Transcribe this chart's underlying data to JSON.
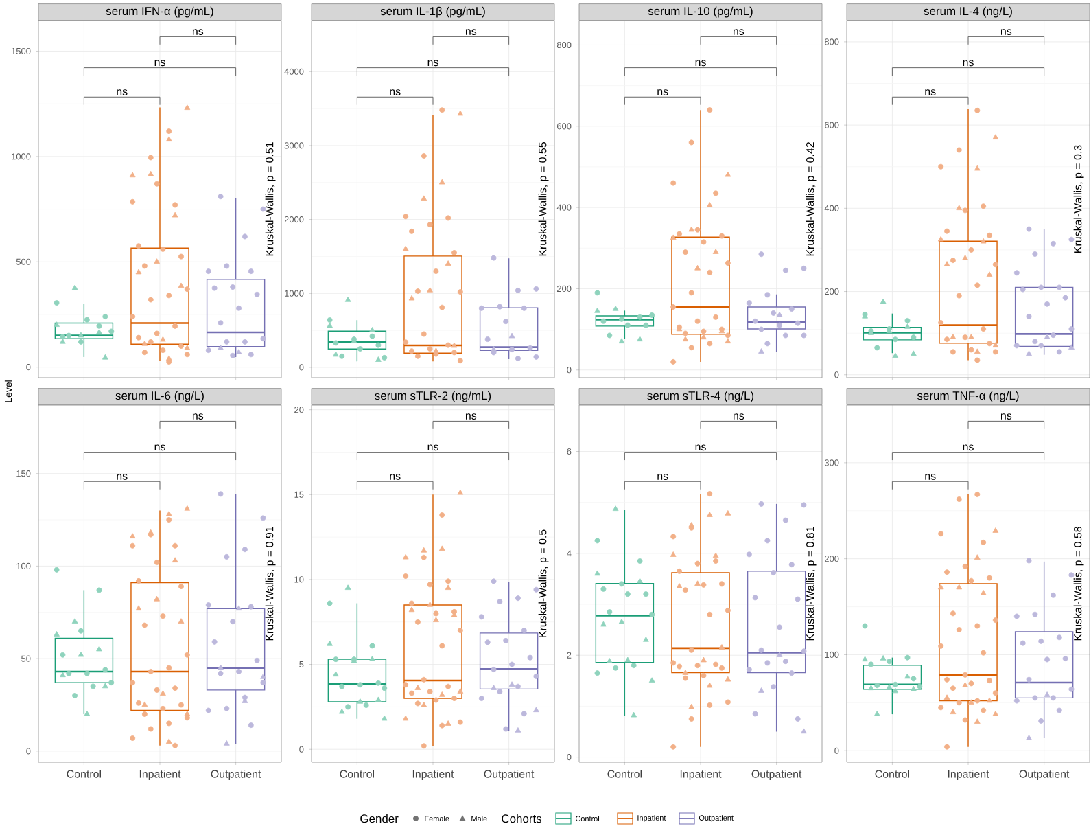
{
  "chart_data": [
    {
      "type": "box",
      "title": "serum IFN-α (pg/mL)",
      "ylabel": "Level",
      "categories": [
        "Control",
        "Inpatient",
        "Outpatient"
      ],
      "colors": [
        "#1b9e77",
        "#d95f02",
        "#7570b3"
      ],
      "ylim": [
        -50,
        1645
      ],
      "yticks": [
        0,
        500,
        1000,
        1500
      ],
      "grid": true,
      "tick_labels": "y",
      "boxes": [
        {
          "low": 48,
          "q1": 135,
          "median": 150,
          "q3": 209,
          "high": 302
        },
        {
          "low": 30,
          "q1": 109,
          "median": 209,
          "q3": 565,
          "high": 1233
        },
        {
          "low": 48,
          "q1": 98,
          "median": 165,
          "q3": 417,
          "high": 804
        }
      ],
      "series": [
        {
          "type": "scatter",
          "marker": "circle",
          "color": "#8fd3bd",
          "x": [
            "Control",
            "Control",
            "Control",
            "Control",
            "Control",
            "Control",
            "Control",
            "Control"
          ],
          "values": [
            305,
            195,
            120,
            145,
            240,
            225,
            150,
            170
          ]
        },
        {
          "type": "scatter",
          "marker": "triangle",
          "color": "#8fd3bd",
          "x": [
            "Control",
            "Control",
            "Control",
            "Control",
            "Control",
            "Control"
          ],
          "values": [
            375,
            200,
            165,
            150,
            120,
            45
          ]
        },
        {
          "type": "scatter",
          "marker": "circle",
          "color": "#f2b088",
          "x": [
            "Inpatient",
            "Inpatient",
            "Inpatient",
            "Inpatient",
            "Inpatient",
            "Inpatient",
            "Inpatient",
            "Inpatient",
            "Inpatient",
            "Inpatient",
            "Inpatient",
            "Inpatient",
            "Inpatient",
            "Inpatient",
            "Inpatient",
            "Inpatient",
            "Inpatient",
            "Inpatient",
            "Inpatient",
            "Inpatient",
            "Inpatient",
            "Inpatient"
          ],
          "values": [
            1120,
            995,
            785,
            770,
            870,
            575,
            525,
            560,
            480,
            370,
            340,
            320,
            240,
            195,
            160,
            140,
            100,
            80,
            70,
            60,
            25,
            120
          ]
        },
        {
          "type": "scatter",
          "marker": "triangle",
          "color": "#f2b088",
          "x": [
            "Inpatient",
            "Inpatient",
            "Inpatient",
            "Inpatient",
            "Inpatient",
            "Inpatient",
            "Inpatient",
            "Inpatient",
            "Inpatient",
            "Inpatient",
            "Inpatient",
            "Inpatient"
          ],
          "values": [
            1230,
            1080,
            915,
            910,
            720,
            500,
            450,
            385,
            130,
            110,
            90,
            40
          ]
        },
        {
          "type": "scatter",
          "marker": "circle",
          "color": "#bcb8dc",
          "x": [
            "Outpatient",
            "Outpatient",
            "Outpatient",
            "Outpatient",
            "Outpatient",
            "Outpatient",
            "Outpatient",
            "Outpatient",
            "Outpatient",
            "Outpatient",
            "Outpatient",
            "Outpatient",
            "Outpatient",
            "Outpatient",
            "Outpatient",
            "Outpatient",
            "Outpatient"
          ],
          "values": [
            810,
            750,
            620,
            480,
            455,
            455,
            380,
            375,
            345,
            280,
            210,
            135,
            120,
            120,
            80,
            60,
            55
          ]
        },
        {
          "type": "scatter",
          "marker": "triangle",
          "color": "#bcb8dc",
          "x": [
            "Outpatient",
            "Outpatient"
          ],
          "values": [
            70,
            90
          ]
        }
      ],
      "annotations": [
        "ns",
        "ns",
        "ns",
        "Kruskal-Wallis, p = 0.51"
      ]
    },
    {
      "type": "box",
      "title": "serum IL-1β (pg/mL)",
      "categories": [
        "Control",
        "Inpatient",
        "Outpatient"
      ],
      "colors": [
        "#1b9e77",
        "#d95f02",
        "#7570b3"
      ],
      "ylim": [
        -140,
        4690
      ],
      "yticks": [
        0,
        1000,
        2000,
        3000,
        4000
      ],
      "grid": true,
      "tick_labels": "y",
      "boxes": [
        {
          "low": 80,
          "q1": 248,
          "median": 340,
          "q3": 489,
          "high": 638
        },
        {
          "low": 80,
          "q1": 192,
          "median": 297,
          "q3": 1505,
          "high": 3412
        },
        {
          "low": 111,
          "q1": 229,
          "median": 272,
          "q3": 805,
          "high": 1474
        }
      ],
      "series": [
        {
          "type": "scatter",
          "marker": "circle",
          "color": "#8fd3bd",
          "x": [
            "Control",
            "Control",
            "Control",
            "Control",
            "Control",
            "Control",
            "Control",
            "Control"
          ],
          "values": [
            640,
            420,
            380,
            330,
            300,
            250,
            150,
            130
          ]
        },
        {
          "type": "scatter",
          "marker": "triangle",
          "color": "#8fd3bd",
          "x": [
            "Control",
            "Control",
            "Control",
            "Control",
            "Control",
            "Control"
          ],
          "values": [
            910,
            560,
            500,
            350,
            170,
            100
          ]
        },
        {
          "type": "scatter",
          "marker": "circle",
          "color": "#f2b088",
          "x": [
            "Inpatient",
            "Inpatient",
            "Inpatient",
            "Inpatient",
            "Inpatient",
            "Inpatient",
            "Inpatient",
            "Inpatient",
            "Inpatient",
            "Inpatient",
            "Inpatient",
            "Inpatient",
            "Inpatient",
            "Inpatient",
            "Inpatient",
            "Inpatient",
            "Inpatient",
            "Inpatient",
            "Inpatient",
            "Inpatient"
          ],
          "values": [
            3480,
            2860,
            2040,
            2020,
            1930,
            1840,
            1550,
            1300,
            1030,
            1020,
            810,
            450,
            340,
            300,
            250,
            220,
            200,
            180,
            150,
            90
          ]
        },
        {
          "type": "scatter",
          "marker": "triangle",
          "color": "#f2b088",
          "x": [
            "Inpatient",
            "Inpatient",
            "Inpatient",
            "Inpatient",
            "Inpatient",
            "Inpatient",
            "Inpatient",
            "Inpatient",
            "Inpatient"
          ],
          "values": [
            3430,
            2500,
            2280,
            1600,
            1400,
            1040,
            930,
            290,
            220
          ]
        },
        {
          "type": "scatter",
          "marker": "circle",
          "color": "#bcb8dc",
          "x": [
            "Outpatient",
            "Outpatient",
            "Outpatient",
            "Outpatient",
            "Outpatient",
            "Outpatient",
            "Outpatient",
            "Outpatient",
            "Outpatient",
            "Outpatient",
            "Outpatient",
            "Outpatient",
            "Outpatient"
          ],
          "values": [
            1480,
            1060,
            1040,
            820,
            800,
            800,
            620,
            380,
            260,
            240,
            200,
            140,
            120
          ]
        },
        {
          "type": "scatter",
          "marker": "triangle",
          "color": "#bcb8dc",
          "x": [
            "Outpatient",
            "Outpatient"
          ],
          "values": [
            420,
            240
          ]
        }
      ],
      "annotations": [
        "ns",
        "ns",
        "ns",
        "Kruskal-Wallis, p = 0.55"
      ]
    },
    {
      "type": "box",
      "title": "serum IL-10 (pg/mL)",
      "categories": [
        "Control",
        "Inpatient",
        "Outpatient"
      ],
      "colors": [
        "#1b9e77",
        "#d95f02",
        "#7570b3"
      ],
      "ylim": [
        -19,
        860
      ],
      "yticks": [
        0,
        200,
        400,
        600,
        800
      ],
      "grid": true,
      "tick_labels": "y",
      "boxes": [
        {
          "low": 77,
          "q1": 108,
          "median": 124,
          "q3": 133,
          "high": 146
        },
        {
          "low": 20,
          "q1": 88,
          "median": 155,
          "q3": 327,
          "high": 640
        },
        {
          "low": 45,
          "q1": 101,
          "median": 118,
          "q3": 155,
          "high": 186
        }
      ],
      "series": [
        {
          "type": "scatter",
          "marker": "circle",
          "color": "#8fd3bd",
          "x": [
            "Control",
            "Control",
            "Control",
            "Control",
            "Control",
            "Control",
            "Control",
            "Control"
          ],
          "values": [
            190,
            130,
            125,
            120,
            110,
            110,
            85,
            135
          ]
        },
        {
          "type": "scatter",
          "marker": "triangle",
          "color": "#8fd3bd",
          "x": [
            "Control",
            "Control",
            "Control",
            "Control"
          ],
          "values": [
            150,
            145,
            75,
            70
          ]
        },
        {
          "type": "scatter",
          "marker": "circle",
          "color": "#f2b088",
          "x": [
            "Inpatient",
            "Inpatient",
            "Inpatient",
            "Inpatient",
            "Inpatient",
            "Inpatient",
            "Inpatient",
            "Inpatient",
            "Inpatient",
            "Inpatient",
            "Inpatient",
            "Inpatient",
            "Inpatient",
            "Inpatient",
            "Inpatient",
            "Inpatient",
            "Inpatient",
            "Inpatient",
            "Inpatient",
            "Inpatient",
            "Inpatient",
            "Inpatient",
            "Inpatient"
          ],
          "values": [
            640,
            560,
            460,
            435,
            345,
            335,
            330,
            315,
            290,
            263,
            240,
            190,
            155,
            130,
            120,
            105,
            100,
            95,
            90,
            85,
            65,
            55,
            20
          ]
        },
        {
          "type": "scatter",
          "marker": "triangle",
          "color": "#f2b088",
          "x": [
            "Inpatient",
            "Inpatient",
            "Inpatient",
            "Inpatient",
            "Inpatient",
            "Inpatient",
            "Inpatient",
            "Inpatient",
            "Inpatient",
            "Inpatient",
            "Inpatient"
          ],
          "values": [
            480,
            405,
            345,
            325,
            290,
            250,
            100,
            95,
            80,
            75,
            70
          ]
        },
        {
          "type": "scatter",
          "marker": "circle",
          "color": "#bcb8dc",
          "x": [
            "Outpatient",
            "Outpatient",
            "Outpatient",
            "Outpatient",
            "Outpatient",
            "Outpatient",
            "Outpatient",
            "Outpatient",
            "Outpatient",
            "Outpatient",
            "Outpatient",
            "Outpatient",
            "Outpatient",
            "Outpatient"
          ],
          "values": [
            285,
            250,
            245,
            185,
            165,
            150,
            140,
            120,
            115,
            110,
            100,
            85,
            85,
            65
          ]
        },
        {
          "type": "scatter",
          "marker": "triangle",
          "color": "#bcb8dc",
          "x": [
            "Outpatient",
            "Outpatient"
          ],
          "values": [
            135,
            45
          ]
        }
      ],
      "annotations": [
        "ns",
        "ns",
        "ns",
        "Kruskal-Wallis, p = 0.42"
      ]
    },
    {
      "type": "box",
      "title": "serum IL-4 (ng/L)",
      "categories": [
        "Control",
        "Inpatient",
        "Outpatient"
      ],
      "colors": [
        "#1b9e77",
        "#d95f02",
        "#7570b3"
      ],
      "ylim": [
        -7,
        851
      ],
      "yticks": [
        0,
        200,
        400,
        600,
        800
      ],
      "grid": true,
      "tick_labels": "y",
      "boxes": [
        {
          "low": 52,
          "q1": 84,
          "median": 101,
          "q3": 114,
          "high": 147
        },
        {
          "low": 35,
          "q1": 76,
          "median": 119,
          "q3": 321,
          "high": 638
        },
        {
          "low": 48,
          "q1": 68,
          "median": 98,
          "q3": 210,
          "high": 350
        }
      ],
      "series": [
        {
          "type": "scatter",
          "marker": "circle",
          "color": "#8fd3bd",
          "x": [
            "Control",
            "Control",
            "Control",
            "Control",
            "Control",
            "Control",
            "Control"
          ],
          "values": [
            145,
            130,
            110,
            105,
            90,
            85,
            65
          ]
        },
        {
          "type": "scatter",
          "marker": "triangle",
          "color": "#8fd3bd",
          "x": [
            "Control",
            "Control",
            "Control",
            "Control",
            "Control",
            "Control",
            "Control"
          ],
          "values": [
            175,
            140,
            115,
            105,
            100,
            50,
            45
          ]
        },
        {
          "type": "scatter",
          "marker": "circle",
          "color": "#f2b088",
          "x": [
            "Inpatient",
            "Inpatient",
            "Inpatient",
            "Inpatient",
            "Inpatient",
            "Inpatient",
            "Inpatient",
            "Inpatient",
            "Inpatient",
            "Inpatient",
            "Inpatient",
            "Inpatient",
            "Inpatient",
            "Inpatient",
            "Inpatient",
            "Inpatient",
            "Inpatient",
            "Inpatient",
            "Inpatient",
            "Inpatient",
            "Inpatient"
          ],
          "values": [
            635,
            540,
            500,
            405,
            395,
            345,
            335,
            300,
            275,
            265,
            215,
            190,
            125,
            110,
            90,
            85,
            75,
            60,
            55,
            55,
            35
          ]
        },
        {
          "type": "scatter",
          "marker": "triangle",
          "color": "#f2b088",
          "x": [
            "Inpatient",
            "Inpatient",
            "Inpatient",
            "Inpatient",
            "Inpatient",
            "Inpatient",
            "Inpatient",
            "Inpatient",
            "Inpatient",
            "Inpatient",
            "Inpatient",
            "Inpatient"
          ],
          "values": [
            570,
            495,
            400,
            325,
            320,
            280,
            265,
            240,
            90,
            90,
            70,
            55
          ]
        },
        {
          "type": "scatter",
          "marker": "circle",
          "color": "#bcb8dc",
          "x": [
            "Outpatient",
            "Outpatient",
            "Outpatient",
            "Outpatient",
            "Outpatient",
            "Outpatient",
            "Outpatient",
            "Outpatient",
            "Outpatient",
            "Outpatient",
            "Outpatient",
            "Outpatient",
            "Outpatient",
            "Outpatient",
            "Outpatient",
            "Outpatient",
            "Outpatient"
          ],
          "values": [
            350,
            325,
            315,
            290,
            245,
            210,
            210,
            205,
            185,
            170,
            140,
            110,
            95,
            80,
            70,
            55,
            70
          ]
        },
        {
          "type": "scatter",
          "marker": "triangle",
          "color": "#bcb8dc",
          "x": [
            "Outpatient",
            "Outpatient",
            "Outpatient"
          ],
          "values": [
            90,
            50,
            65
          ]
        }
      ],
      "annotations": [
        "ns",
        "ns",
        "ns",
        "Kruskal-Wallis, p = 0.3"
      ]
    },
    {
      "type": "box",
      "title": "serum IL-6 (ng/L)",
      "categories": [
        "Control",
        "Inpatient",
        "Outpatient"
      ],
      "colors": [
        "#1b9e77",
        "#d95f02",
        "#7570b3"
      ],
      "ylim": [
        -6,
        187
      ],
      "yticks": [
        0,
        50,
        100,
        150
      ],
      "grid": true,
      "boxes": [
        {
          "low": 20,
          "q1": 37,
          "median": 43,
          "q3": 61,
          "high": 87
        },
        {
          "low": 3,
          "q1": 22,
          "median": 43,
          "q3": 91,
          "high": 130
        },
        {
          "low": 4,
          "q1": 33,
          "median": 45,
          "q3": 77,
          "high": 139
        }
      ],
      "series": [
        {
          "type": "scatter",
          "marker": "circle",
          "color": "#8fd3bd",
          "x": [
            "Control",
            "Control",
            "Control",
            "Control",
            "Control",
            "Control",
            "Control",
            "Control",
            "Control",
            "Control"
          ],
          "values": [
            98,
            87,
            65,
            52,
            44,
            42,
            42,
            37,
            35,
            30
          ]
        },
        {
          "type": "scatter",
          "marker": "triangle",
          "color": "#8fd3bd",
          "x": [
            "Control",
            "Control",
            "Control",
            "Control",
            "Control",
            "Control",
            "Control"
          ],
          "values": [
            70,
            63,
            55,
            52,
            41,
            35,
            20
          ]
        },
        {
          "type": "scatter",
          "marker": "circle",
          "color": "#f2b088",
          "x": [
            "Inpatient",
            "Inpatient",
            "Inpatient",
            "Inpatient",
            "Inpatient",
            "Inpatient",
            "Inpatient",
            "Inpatient",
            "Inpatient",
            "Inpatient",
            "Inpatient",
            "Inpatient",
            "Inpatient",
            "Inpatient",
            "Inpatient",
            "Inpatient",
            "Inpatient",
            "Inpatient",
            "Inpatient",
            "Inpatient",
            "Inpatient",
            "Inpatient",
            "Inpatient",
            "Inpatient"
          ],
          "values": [
            125,
            117,
            111,
            111,
            102,
            92,
            89,
            73,
            68,
            52,
            45,
            43,
            37,
            34,
            33,
            26,
            25,
            23,
            20,
            18,
            15,
            12,
            7,
            3
          ]
        },
        {
          "type": "scatter",
          "marker": "triangle",
          "color": "#f2b088",
          "x": [
            "Inpatient",
            "Inpatient",
            "Inpatient",
            "Inpatient",
            "Inpatient",
            "Inpatient",
            "Inpatient",
            "Inpatient",
            "Inpatient",
            "Inpatient",
            "Inpatient",
            "Inpatient"
          ],
          "values": [
            131,
            128,
            118,
            116,
            103,
            82,
            77,
            70,
            31,
            25,
            20,
            5
          ]
        },
        {
          "type": "scatter",
          "marker": "circle",
          "color": "#bcb8dc",
          "x": [
            "Outpatient",
            "Outpatient",
            "Outpatient",
            "Outpatient",
            "Outpatient",
            "Outpatient",
            "Outpatient",
            "Outpatient",
            "Outpatient",
            "Outpatient",
            "Outpatient",
            "Outpatient",
            "Outpatient",
            "Outpatient",
            "Outpatient",
            "Outpatient"
          ],
          "values": [
            139,
            126,
            109,
            105,
            79,
            78,
            70,
            59,
            49,
            43,
            42,
            37,
            29,
            23,
            22,
            14
          ]
        },
        {
          "type": "scatter",
          "marker": "triangle",
          "color": "#bcb8dc",
          "x": [
            "Outpatient",
            "Outpatient",
            "Outpatient",
            "Outpatient",
            "Outpatient"
          ],
          "values": [
            77,
            45,
            40,
            27,
            4
          ]
        }
      ],
      "annotations": [
        "ns",
        "ns",
        "ns",
        "Kruskal-Wallis, p = 0.91"
      ]
    },
    {
      "type": "box",
      "title": "serum sTLR-2 (ng/mL)",
      "categories": [
        "Control",
        "Inpatient",
        "Outpatient"
      ],
      "colors": [
        "#1b9e77",
        "#d95f02",
        "#7570b3"
      ],
      "ylim": [
        -0.76,
        20.27
      ],
      "yticks": [
        0,
        5,
        10,
        15,
        20
      ],
      "grid": true,
      "boxes": [
        {
          "low": 1.8,
          "q1": 2.8,
          "median": 3.86,
          "q3": 5.3,
          "high": 8.6
        },
        {
          "low": 0.2,
          "q1": 3.0,
          "median": 4.05,
          "q3": 8.5,
          "high": 15.0
        },
        {
          "low": 1.1,
          "q1": 3.55,
          "median": 4.73,
          "q3": 6.85,
          "high": 9.85
        }
      ],
      "series": [
        {
          "type": "scatter",
          "marker": "circle",
          "color": "#8fd3bd",
          "x": [
            "Control",
            "Control",
            "Control",
            "Control",
            "Control",
            "Control",
            "Control",
            "Control",
            "Control",
            "Control"
          ],
          "values": [
            8.6,
            6.1,
            5.3,
            5.3,
            3.9,
            3.8,
            3.7,
            3.6,
            2.6,
            2.5
          ]
        },
        {
          "type": "scatter",
          "marker": "triangle",
          "color": "#8fd3bd",
          "x": [
            "Control",
            "Control",
            "Control",
            "Control",
            "Control",
            "Control",
            "Control",
            "Control",
            "Control"
          ],
          "values": [
            9.5,
            6.2,
            5.3,
            5.2,
            4.4,
            2.9,
            2.8,
            2.2,
            1.8
          ]
        },
        {
          "type": "scatter",
          "marker": "circle",
          "color": "#f2b088",
          "x": [
            "Inpatient",
            "Inpatient",
            "Inpatient",
            "Inpatient",
            "Inpatient",
            "Inpatient",
            "Inpatient",
            "Inpatient",
            "Inpatient",
            "Inpatient",
            "Inpatient",
            "Inpatient",
            "Inpatient",
            "Inpatient",
            "Inpatient",
            "Inpatient",
            "Inpatient",
            "Inpatient",
            "Inpatient",
            "Inpatient",
            "Inpatient",
            "Inpatient"
          ],
          "values": [
            13.8,
            11.3,
            10.2,
            9.9,
            9.7,
            8.6,
            8.1,
            8.0,
            7.5,
            7.0,
            6.1,
            4.1,
            3.8,
            3.7,
            3.4,
            3.3,
            3.0,
            2.9,
            2.7,
            1.6,
            1.4,
            0.2
          ]
        },
        {
          "type": "scatter",
          "marker": "triangle",
          "color": "#f2b088",
          "x": [
            "Inpatient",
            "Inpatient",
            "Inpatient",
            "Inpatient",
            "Inpatient",
            "Inpatient",
            "Inpatient",
            "Inpatient",
            "Inpatient",
            "Inpatient",
            "Inpatient",
            "Inpatient",
            "Inpatient",
            "Inpatient",
            "Inpatient"
          ],
          "values": [
            15.1,
            11.8,
            11.7,
            11.3,
            9.5,
            8.5,
            8.2,
            7.9,
            7.6,
            3.6,
            3.4,
            3.2,
            2.6,
            1.8,
            1.5
          ]
        },
        {
          "type": "scatter",
          "marker": "circle",
          "color": "#bcb8dc",
          "x": [
            "Outpatient",
            "Outpatient",
            "Outpatient",
            "Outpatient",
            "Outpatient",
            "Outpatient",
            "Outpatient",
            "Outpatient",
            "Outpatient",
            "Outpatient",
            "Outpatient",
            "Outpatient",
            "Outpatient",
            "Outpatient",
            "Outpatient",
            "Outpatient",
            "Outpatient"
          ],
          "values": [
            9.9,
            9.4,
            8.9,
            8.7,
            7.8,
            7.0,
            6.4,
            6.3,
            5.4,
            5.0,
            4.7,
            4.3,
            3.7,
            3.4,
            3.0,
            2.1,
            1.2
          ]
        },
        {
          "type": "scatter",
          "marker": "triangle",
          "color": "#bcb8dc",
          "x": [
            "Outpatient",
            "Outpatient",
            "Outpatient",
            "Outpatient"
          ],
          "values": [
            3.8,
            3.6,
            2.3,
            1.1
          ]
        }
      ],
      "annotations": [
        "ns",
        "ns",
        "ns",
        "Kruskal-Wallis, p = 0.5"
      ]
    },
    {
      "type": "box",
      "title": "serum sTLR-4 (ng/L)",
      "categories": [
        "Control",
        "Inpatient",
        "Outpatient"
      ],
      "colors": [
        "#1b9e77",
        "#d95f02",
        "#7570b3"
      ],
      "ylim": [
        -0.1,
        6.91
      ],
      "yticks": [
        0,
        2,
        4,
        6
      ],
      "grid": true,
      "boxes": [
        {
          "low": 0.81,
          "q1": 1.86,
          "median": 2.78,
          "q3": 3.41,
          "high": 4.86
        },
        {
          "low": 0.2,
          "q1": 1.66,
          "median": 2.14,
          "q3": 3.62,
          "high": 5.17
        },
        {
          "low": 0.5,
          "q1": 1.66,
          "median": 2.05,
          "q3": 3.65,
          "high": 4.97
        }
      ],
      "series": [
        {
          "type": "scatter",
          "marker": "circle",
          "color": "#8fd3bd",
          "x": [
            "Control",
            "Control",
            "Control",
            "Control",
            "Control",
            "Control",
            "Control",
            "Control",
            "Control",
            "Control",
            "Control"
          ],
          "values": [
            4.25,
            3.85,
            3.4,
            3.3,
            3.2,
            3.2,
            2.85,
            2.8,
            1.8,
            1.75,
            1.65
          ]
        },
        {
          "type": "scatter",
          "marker": "triangle",
          "color": "#8fd3bd",
          "x": [
            "Control",
            "Control",
            "Control",
            "Control",
            "Control",
            "Control",
            "Control",
            "Control",
            "Control",
            "Control"
          ],
          "values": [
            4.87,
            3.6,
            3.45,
            2.65,
            2.6,
            2.3,
            1.9,
            1.88,
            1.5,
            0.82
          ]
        },
        {
          "type": "scatter",
          "marker": "circle",
          "color": "#f2b088",
          "x": [
            "Inpatient",
            "Inpatient",
            "Inpatient",
            "Inpatient",
            "Inpatient",
            "Inpatient",
            "Inpatient",
            "Inpatient",
            "Inpatient",
            "Inpatient",
            "Inpatient",
            "Inpatient",
            "Inpatient",
            "Inpatient",
            "Inpatient",
            "Inpatient",
            "Inpatient",
            "Inpatient",
            "Inpatient",
            "Inpatient",
            "Inpatient",
            "Inpatient",
            "Inpatient"
          ],
          "values": [
            5.17,
            4.5,
            4.33,
            3.85,
            3.8,
            3.65,
            3.4,
            3.38,
            3.28,
            2.88,
            2.8,
            2.1,
            1.85,
            1.82,
            1.8,
            1.78,
            1.75,
            1.6,
            1.55,
            1.08,
            1.02,
            0.75,
            0.2
          ]
        },
        {
          "type": "scatter",
          "marker": "triangle",
          "color": "#f2b088",
          "x": [
            "Inpatient",
            "Inpatient",
            "Inpatient",
            "Inpatient",
            "Inpatient",
            "Inpatient",
            "Inpatient",
            "Inpatient",
            "Inpatient",
            "Inpatient",
            "Inpatient",
            "Inpatient",
            "Inpatient"
          ],
          "values": [
            4.78,
            4.75,
            4.55,
            3.97,
            3.95,
            3.4,
            3.35,
            2.15,
            1.9,
            1.65,
            1.52,
            1.4,
            0.98
          ]
        },
        {
          "type": "scatter",
          "marker": "circle",
          "color": "#bcb8dc",
          "x": [
            "Outpatient",
            "Outpatient",
            "Outpatient",
            "Outpatient",
            "Outpatient",
            "Outpatient",
            "Outpatient",
            "Outpatient",
            "Outpatient",
            "Outpatient",
            "Outpatient",
            "Outpatient",
            "Outpatient",
            "Outpatient",
            "Outpatient",
            "Outpatient",
            "Outpatient",
            "Outpatient",
            "Outpatient"
          ],
          "values": [
            4.97,
            4.95,
            4.65,
            4.25,
            3.98,
            3.78,
            3.62,
            3.13,
            3.1,
            2.55,
            2.1,
            2.08,
            1.88,
            1.85,
            1.72,
            1.65,
            1.38,
            0.85,
            0.75
          ]
        },
        {
          "type": "scatter",
          "marker": "triangle",
          "color": "#bcb8dc",
          "x": [
            "Outpatient",
            "Outpatient",
            "Outpatient"
          ],
          "values": [
            2.0,
            1.3,
            0.5
          ]
        }
      ],
      "annotations": [
        "ns",
        "ns",
        "ns",
        "Kruskal-Wallis, p = 0.81"
      ]
    },
    {
      "type": "box",
      "title": "serum TNF-α (ng/L)",
      "categories": [
        "Control",
        "Inpatient",
        "Outpatient"
      ],
      "colors": [
        "#1b9e77",
        "#d95f02",
        "#7570b3"
      ],
      "ylim": [
        -12,
        360
      ],
      "yticks": [
        0,
        100,
        200,
        300
      ],
      "grid": true,
      "boxes": [
        {
          "low": 38,
          "q1": 64,
          "median": 69,
          "q3": 89,
          "high": 97
        },
        {
          "low": 4,
          "q1": 52,
          "median": 79,
          "q3": 174,
          "high": 267
        },
        {
          "low": 13,
          "q1": 55,
          "median": 71,
          "q3": 124,
          "high": 197
        }
      ],
      "series": [
        {
          "type": "scatter",
          "marker": "circle",
          "color": "#8fd3bd",
          "x": [
            "Control",
            "Control",
            "Control",
            "Control",
            "Control",
            "Control",
            "Control",
            "Control"
          ],
          "values": [
            130,
            97,
            93,
            90,
            75,
            69,
            68,
            67
          ]
        },
        {
          "type": "scatter",
          "marker": "triangle",
          "color": "#8fd3bd",
          "x": [
            "Control",
            "Control",
            "Control",
            "Control",
            "Control",
            "Control",
            "Control",
            "Control"
          ],
          "values": [
            96,
            95,
            77,
            66,
            65,
            64,
            62,
            38
          ]
        },
        {
          "type": "scatter",
          "marker": "circle",
          "color": "#f2b088",
          "x": [
            "Inpatient",
            "Inpatient",
            "Inpatient",
            "Inpatient",
            "Inpatient",
            "Inpatient",
            "Inpatient",
            "Inpatient",
            "Inpatient",
            "Inpatient",
            "Inpatient",
            "Inpatient",
            "Inpatient",
            "Inpatient",
            "Inpatient",
            "Inpatient",
            "Inpatient",
            "Inpatient",
            "Inpatient",
            "Inpatient",
            "Inpatient",
            "Inpatient",
            "Inpatient",
            "Inpatient",
            "Inpatient",
            "Inpatient"
          ],
          "values": [
            267,
            262,
            226,
            217,
            192,
            186,
            180,
            177,
            143,
            136,
            130,
            126,
            109,
            102,
            79,
            74,
            73,
            70,
            65,
            60,
            52,
            50,
            45,
            42,
            32,
            4
          ]
        },
        {
          "type": "scatter",
          "marker": "triangle",
          "color": "#f2b088",
          "x": [
            "Inpatient",
            "Inpatient",
            "Inpatient",
            "Inpatient",
            "Inpatient",
            "Inpatient",
            "Inpatient",
            "Inpatient",
            "Inpatient",
            "Inpatient",
            "Inpatient",
            "Inpatient"
          ],
          "values": [
            229,
            201,
            170,
            170,
            164,
            68,
            55,
            52,
            50,
            40,
            38,
            30
          ]
        },
        {
          "type": "scatter",
          "marker": "circle",
          "color": "#bcb8dc",
          "x": [
            "Outpatient",
            "Outpatient",
            "Outpatient",
            "Outpatient",
            "Outpatient",
            "Outpatient",
            "Outpatient",
            "Outpatient",
            "Outpatient",
            "Outpatient",
            "Outpatient",
            "Outpatient",
            "Outpatient",
            "Outpatient",
            "Outpatient",
            "Outpatient",
            "Outpatient"
          ],
          "values": [
            198,
            183,
            162,
            142,
            140,
            118,
            114,
            112,
            96,
            95,
            74,
            64,
            55,
            55,
            52,
            42,
            31
          ]
        },
        {
          "type": "scatter",
          "marker": "triangle",
          "color": "#bcb8dc",
          "x": [
            "Outpatient",
            "Outpatient"
          ],
          "values": [
            58,
            13
          ]
        }
      ],
      "annotations": [
        "ns",
        "ns",
        "ns",
        "Kruskal-Wallis, p = 0.58"
      ]
    },
    {
      "type": "other",
      "colors": [
        "#1b9e77",
        "#d95f02",
        "#7570b3"
      ],
      "annotations": [
        "Gender",
        "Female",
        "Male",
        "Cohorts",
        "Control",
        "Inpatient",
        "Outpatient"
      ]
    }
  ]
}
